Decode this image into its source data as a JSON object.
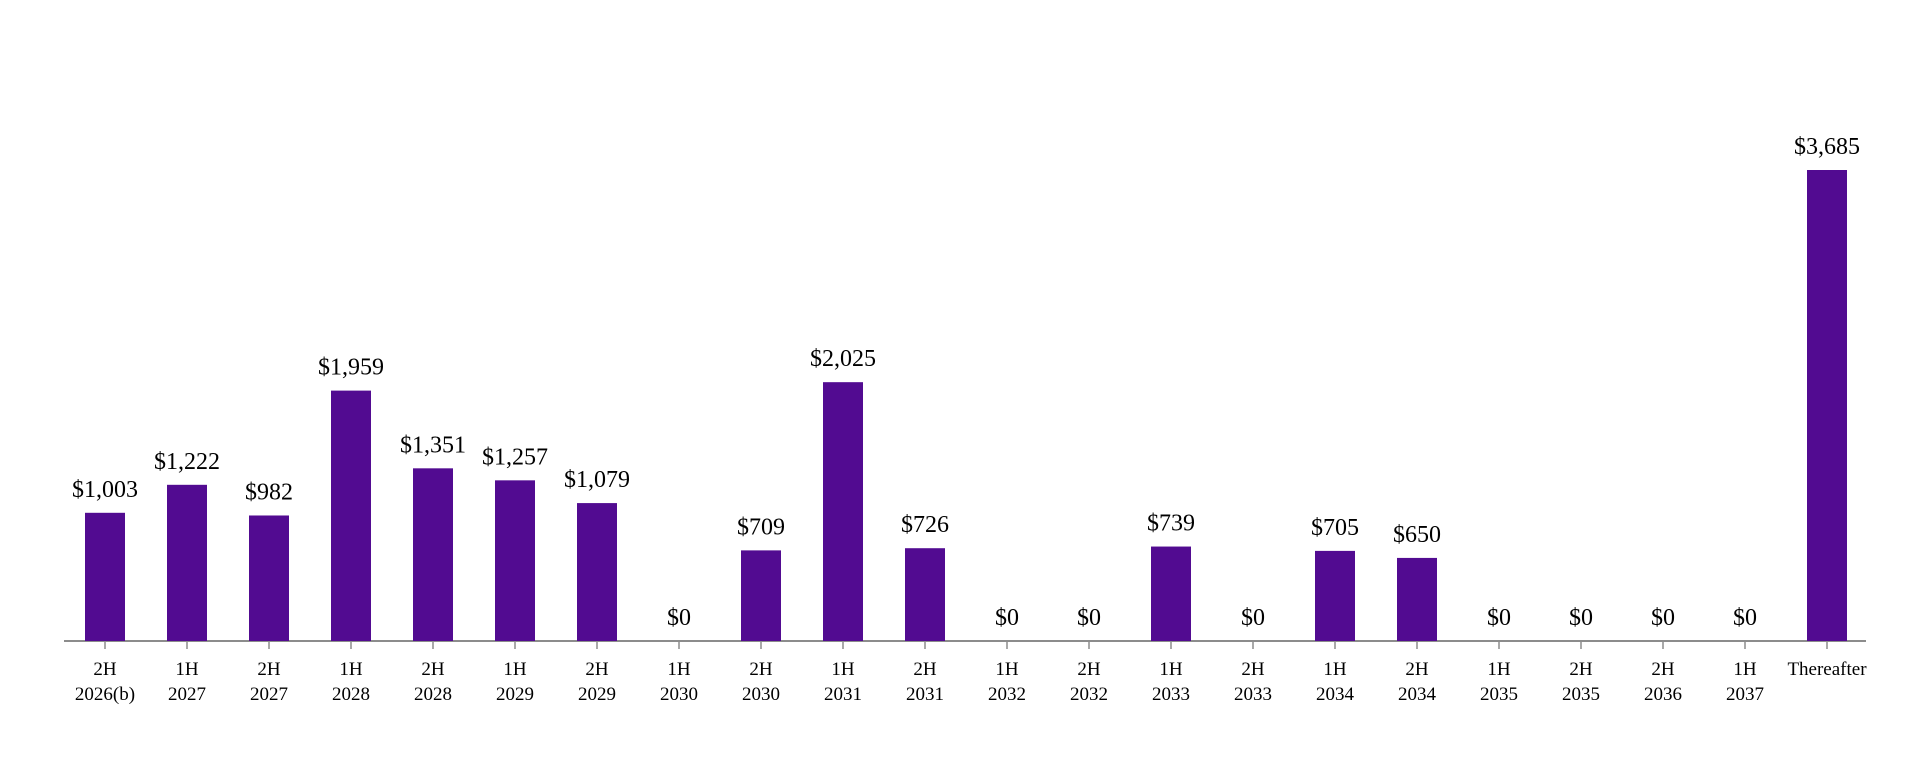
{
  "chart_data": {
    "type": "bar",
    "title": "",
    "xlabel": "",
    "ylabel": "",
    "ylim": [
      0,
      4200
    ],
    "grid": false,
    "legend": "none",
    "categories": [
      [
        "2H",
        "2026(b)"
      ],
      [
        "1H",
        "2027"
      ],
      [
        "2H",
        "2027"
      ],
      [
        "1H",
        "2028"
      ],
      [
        "2H",
        "2028"
      ],
      [
        "1H",
        "2029"
      ],
      [
        "2H",
        "2029"
      ],
      [
        "1H",
        "2030"
      ],
      [
        "2H",
        "2030"
      ],
      [
        "1H",
        "2031"
      ],
      [
        "2H",
        "2031"
      ],
      [
        "1H",
        "2032"
      ],
      [
        "2H",
        "2032"
      ],
      [
        "1H",
        "2033"
      ],
      [
        "2H",
        "2033"
      ],
      [
        "1H",
        "2034"
      ],
      [
        "2H",
        "2034"
      ],
      [
        "1H",
        "2035"
      ],
      [
        "2H",
        "2035"
      ],
      [
        "2H",
        "2036"
      ],
      [
        "1H",
        "2037"
      ],
      [
        "Thereafter"
      ]
    ],
    "values": [
      1003,
      1222,
      982,
      1959,
      1351,
      1257,
      1079,
      0,
      709,
      2025,
      726,
      0,
      0,
      739,
      0,
      705,
      650,
      0,
      0,
      0,
      0,
      3685
    ],
    "data_labels": [
      "$1,003",
      "$1,222",
      "$982",
      "$1,959",
      "$1,351",
      "$1,257",
      "$1,079",
      "$0",
      "$709",
      "$2,025",
      "$726",
      "$0",
      "$0",
      "$739",
      "$0",
      "$705",
      "$650",
      "$0",
      "$0",
      "$0",
      "$0",
      "$3,685"
    ],
    "colors": {
      "bar": "#520b91",
      "axis": "#8c8c8c",
      "text": "#000000"
    }
  }
}
